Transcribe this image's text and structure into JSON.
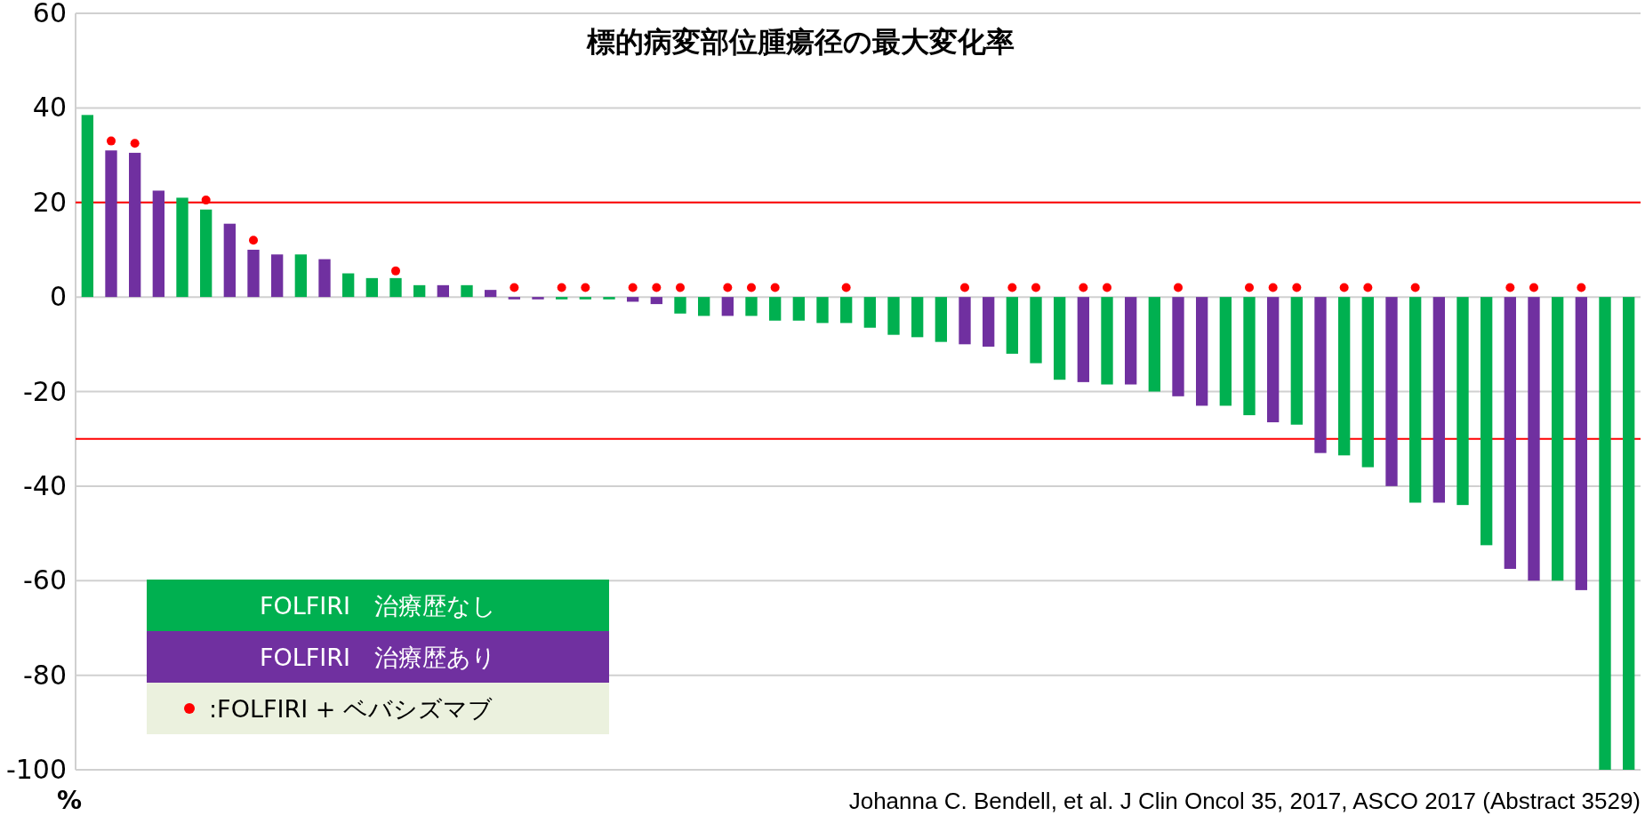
{
  "chart_data": {
    "type": "bar",
    "title": "標的病変部位腫瘍径の最大変化率",
    "ylabel": "%",
    "categories": [
      null,
      null,
      null,
      null,
      null,
      null,
      null,
      null,
      null,
      null,
      null,
      null,
      null,
      null,
      null,
      null,
      null,
      null,
      null,
      null,
      null,
      null,
      null,
      null,
      null,
      null,
      null,
      null,
      null,
      null,
      null,
      null,
      null,
      null,
      null,
      null,
      null,
      null,
      null,
      null,
      null,
      null,
      null,
      null,
      null,
      null,
      null,
      null,
      null,
      null,
      null,
      null,
      null,
      null,
      null,
      null,
      null,
      null,
      null,
      null,
      null,
      null,
      null,
      null,
      null,
      null
    ],
    "series": [
      {
        "name": "FOLFIRI　治療歴なし",
        "color": "#00b050",
        "values": [
          38.5,
          null,
          null,
          null,
          21,
          18.5,
          null,
          null,
          null,
          9,
          null,
          5,
          4,
          4,
          2.5,
          null,
          2.5,
          null,
          null,
          null,
          -0.5,
          -0.5,
          -0.5,
          null,
          null,
          -3.5,
          -4,
          null,
          -4,
          -5,
          -5,
          -5.5,
          -5.5,
          -6.5,
          -8,
          -8.5,
          -9.5,
          null,
          null,
          -12,
          -14,
          -17.5,
          null,
          -18.5,
          null,
          -20,
          null,
          null,
          -23,
          -25,
          null,
          -27,
          null,
          -33.5,
          -36,
          null,
          -43.5,
          null,
          -44,
          -52.5,
          null,
          null,
          -60,
          null,
          -100,
          -100
        ]
      },
      {
        "name": "FOLFIRI　治療歴あり",
        "color": "#7030a0",
        "values": [
          null,
          31,
          30.5,
          22.5,
          null,
          null,
          15.5,
          10,
          9,
          null,
          8,
          null,
          null,
          null,
          null,
          2.5,
          null,
          1.5,
          -0.5,
          -0.5,
          null,
          null,
          null,
          -1,
          -1.5,
          null,
          null,
          -4,
          null,
          null,
          null,
          null,
          null,
          null,
          null,
          null,
          null,
          -10,
          -10.5,
          null,
          null,
          null,
          -18,
          null,
          -18.5,
          null,
          -21,
          -23,
          null,
          null,
          -26.5,
          null,
          -33,
          null,
          null,
          -40,
          null,
          -43.5,
          null,
          null,
          -57.5,
          -60,
          null,
          -62,
          null,
          null
        ]
      },
      {
        "name": ":FOLFIRI + ベバシズマブ",
        "type": "scatter",
        "color": "#ff0000",
        "marker": "circle",
        "values": [
          null,
          33,
          32.5,
          null,
          null,
          20.5,
          null,
          12,
          null,
          null,
          null,
          null,
          null,
          5.5,
          null,
          null,
          null,
          null,
          2,
          null,
          2,
          2,
          null,
          2,
          2,
          2,
          null,
          2,
          2,
          2,
          null,
          null,
          2,
          null,
          null,
          null,
          null,
          2,
          null,
          2,
          2,
          null,
          2,
          2,
          null,
          null,
          2,
          null,
          null,
          2,
          2,
          2,
          null,
          2,
          2,
          null,
          2,
          null,
          null,
          null,
          2,
          2,
          null,
          2,
          null,
          null
        ]
      }
    ],
    "ylim": [
      -100,
      60
    ],
    "yticks": [
      -100,
      -80,
      -60,
      -40,
      -20,
      0,
      20,
      40,
      60
    ],
    "grid": "y",
    "legend": "bottom left",
    "ref_lines": [
      {
        "axis": "y",
        "value": 20,
        "color": "#ff0000"
      },
      {
        "axis": "y",
        "value": -30,
        "color": "#ff0000"
      }
    ],
    "annotations": [
      "Johanna C. Bendell, et al. J Clin Oncol 35, 2017, ASCO 2017 (Abstract 3529)"
    ]
  }
}
